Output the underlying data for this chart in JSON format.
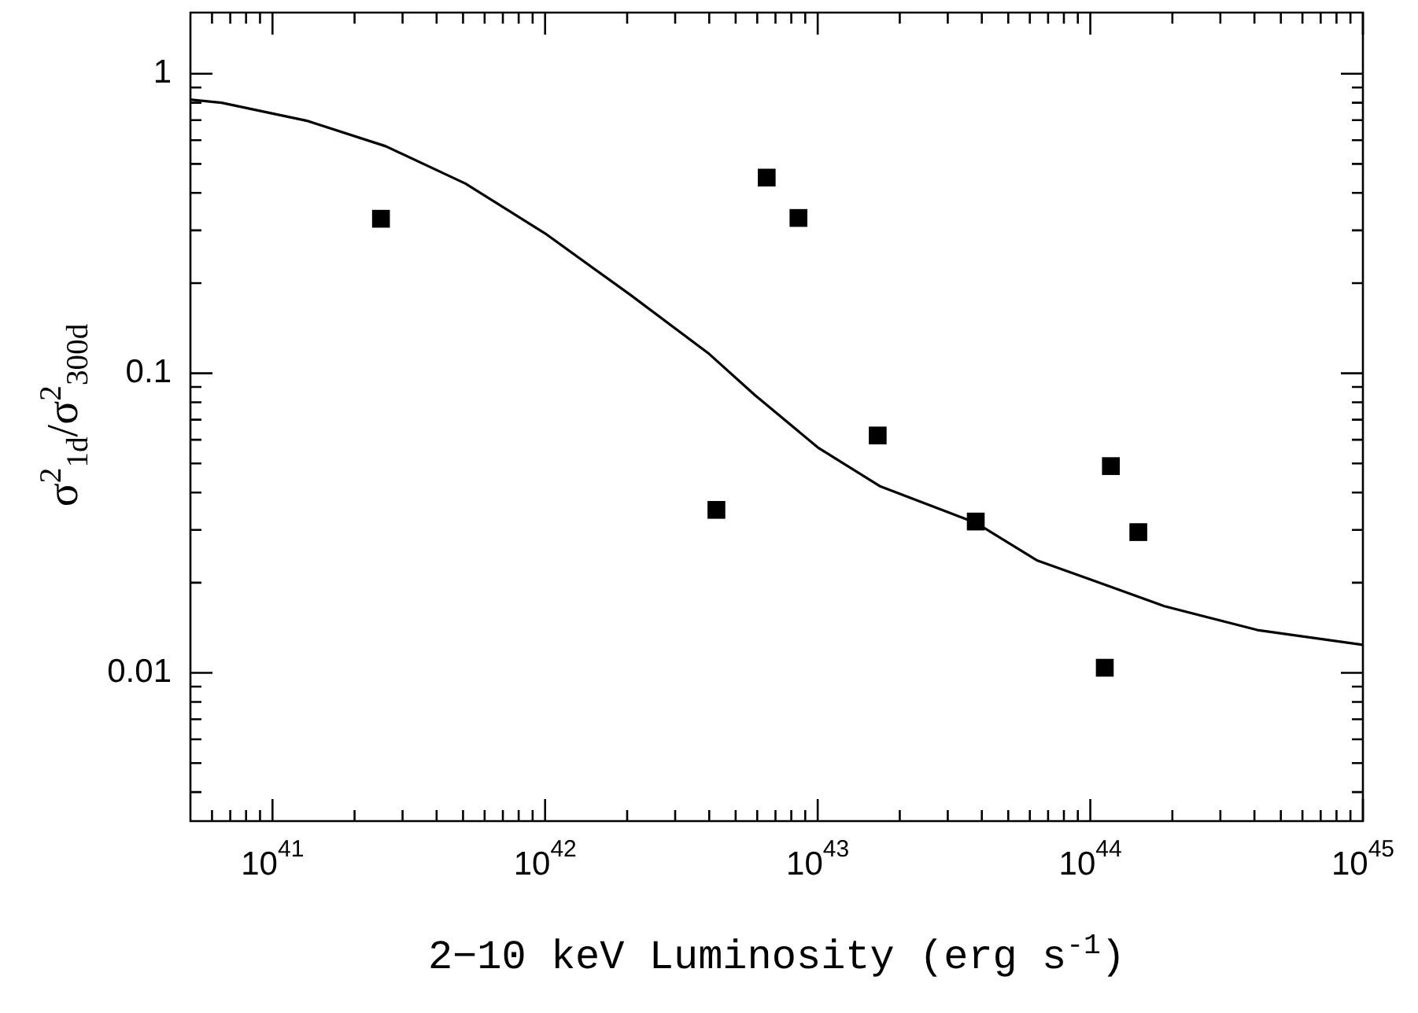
{
  "chart_data": {
    "type": "scatter",
    "xlabel": "2−10 keV Luminosity (erg s$^{-1}$)",
    "ylabel": "σ$^{2}$$_{1d}$/σ$^{2}$$_{300d}$",
    "log": "xy",
    "grid": false,
    "legend": false,
    "xlim": [
      5e+40,
      1e+45
    ],
    "ylim": [
      0.0032,
      1.6
    ],
    "xticks": [
      {
        "value": 6e+40,
        "label": null
      },
      {
        "value": 7e+40,
        "label": null
      },
      {
        "value": 8e+40,
        "label": null
      },
      {
        "value": 9e+40,
        "label": null
      },
      {
        "value": 1e+41,
        "label": "10$^{41}$"
      },
      {
        "value": 2e+41,
        "label": null
      },
      {
        "value": 3e+41,
        "label": null
      },
      {
        "value": 4e+41,
        "label": null
      },
      {
        "value": 5e+41,
        "label": null
      },
      {
        "value": 6e+41,
        "label": null
      },
      {
        "value": 7e+41,
        "label": null
      },
      {
        "value": 8e+41,
        "label": null
      },
      {
        "value": 9e+41,
        "label": null
      },
      {
        "value": 1e+42,
        "label": "10$^{42}$"
      },
      {
        "value": 2e+42,
        "label": null
      },
      {
        "value": 3e+42,
        "label": null
      },
      {
        "value": 4e+42,
        "label": null
      },
      {
        "value": 5e+42,
        "label": null
      },
      {
        "value": 6e+42,
        "label": null
      },
      {
        "value": 7e+42,
        "label": null
      },
      {
        "value": 8e+42,
        "label": null
      },
      {
        "value": 9e+42,
        "label": null
      },
      {
        "value": 1e+43,
        "label": "10$^{43}$"
      },
      {
        "value": 2e+43,
        "label": null
      },
      {
        "value": 3e+43,
        "label": null
      },
      {
        "value": 4e+43,
        "label": null
      },
      {
        "value": 5e+43,
        "label": null
      },
      {
        "value": 6e+43,
        "label": null
      },
      {
        "value": 7e+43,
        "label": null
      },
      {
        "value": 8e+43,
        "label": null
      },
      {
        "value": 9e+43,
        "label": null
      },
      {
        "value": 1e+44,
        "label": "10$^{44}$"
      },
      {
        "value": 2e+44,
        "label": null
      },
      {
        "value": 3e+44,
        "label": null
      },
      {
        "value": 4e+44,
        "label": null
      },
      {
        "value": 5e+44,
        "label": null
      },
      {
        "value": 6e+44,
        "label": null
      },
      {
        "value": 7e+44,
        "label": null
      },
      {
        "value": 8e+44,
        "label": null
      },
      {
        "value": 9e+44,
        "label": null
      },
      {
        "value": 1e+45,
        "label": "10$^{45}$"
      }
    ],
    "yticks": [
      {
        "value": 0.004,
        "label": null
      },
      {
        "value": 0.005,
        "label": null
      },
      {
        "value": 0.006,
        "label": null
      },
      {
        "value": 0.007,
        "label": null
      },
      {
        "value": 0.008,
        "label": null
      },
      {
        "value": 0.009,
        "label": null
      },
      0.01,
      {
        "value": 0.02,
        "label": null
      },
      {
        "value": 0.03,
        "label": null
      },
      {
        "value": 0.04,
        "label": null
      },
      {
        "value": 0.05,
        "label": null
      },
      {
        "value": 0.06,
        "label": null
      },
      {
        "value": 0.07,
        "label": null
      },
      {
        "value": 0.08,
        "label": null
      },
      {
        "value": 0.09,
        "label": null
      },
      0.1,
      {
        "value": 0.2,
        "label": null
      },
      {
        "value": 0.3,
        "label": null
      },
      {
        "value": 0.4,
        "label": null
      },
      {
        "value": 0.5,
        "label": null
      },
      {
        "value": 0.6,
        "label": null
      },
      {
        "value": 0.7,
        "label": null
      },
      {
        "value": 0.8,
        "label": null
      },
      {
        "value": 0.9,
        "label": null
      },
      1
    ],
    "series": [
      {
        "type": "scatter",
        "color": "#000000",
        "marker": "square",
        "x": [
          2.5e+41,
          4.25e+42,
          6.5e+42,
          8.5e+42,
          1.66e+43,
          3.8e+43,
          1.19e+44,
          1.13e+44,
          1.5e+44
        ],
        "values": [
          0.328,
          0.035,
          0.45,
          0.33,
          0.062,
          0.032,
          0.049,
          0.0104,
          0.0295
        ]
      },
      {
        "type": "line",
        "color": "#000000",
        "marker": "none",
        "line_style": "solid",
        "x": [
          5e+40,
          6.5e+40,
          1.35e+41,
          2.6e+41,
          5.1e+41,
          1e+42,
          2.05e+42,
          4e+42,
          5.9e+42,
          1e+43,
          1.7e+43,
          3.8e+43,
          6.4e+43,
          1e+44,
          1.87e+44,
          4.1e+44,
          1e+45
        ],
        "values": [
          0.82,
          0.8,
          0.695,
          0.573,
          0.43,
          0.293,
          0.183,
          0.116,
          0.0844,
          0.0566,
          0.0419,
          0.0317,
          0.0237,
          0.0205,
          0.0167,
          0.0139,
          0.0124
        ]
      }
    ]
  }
}
